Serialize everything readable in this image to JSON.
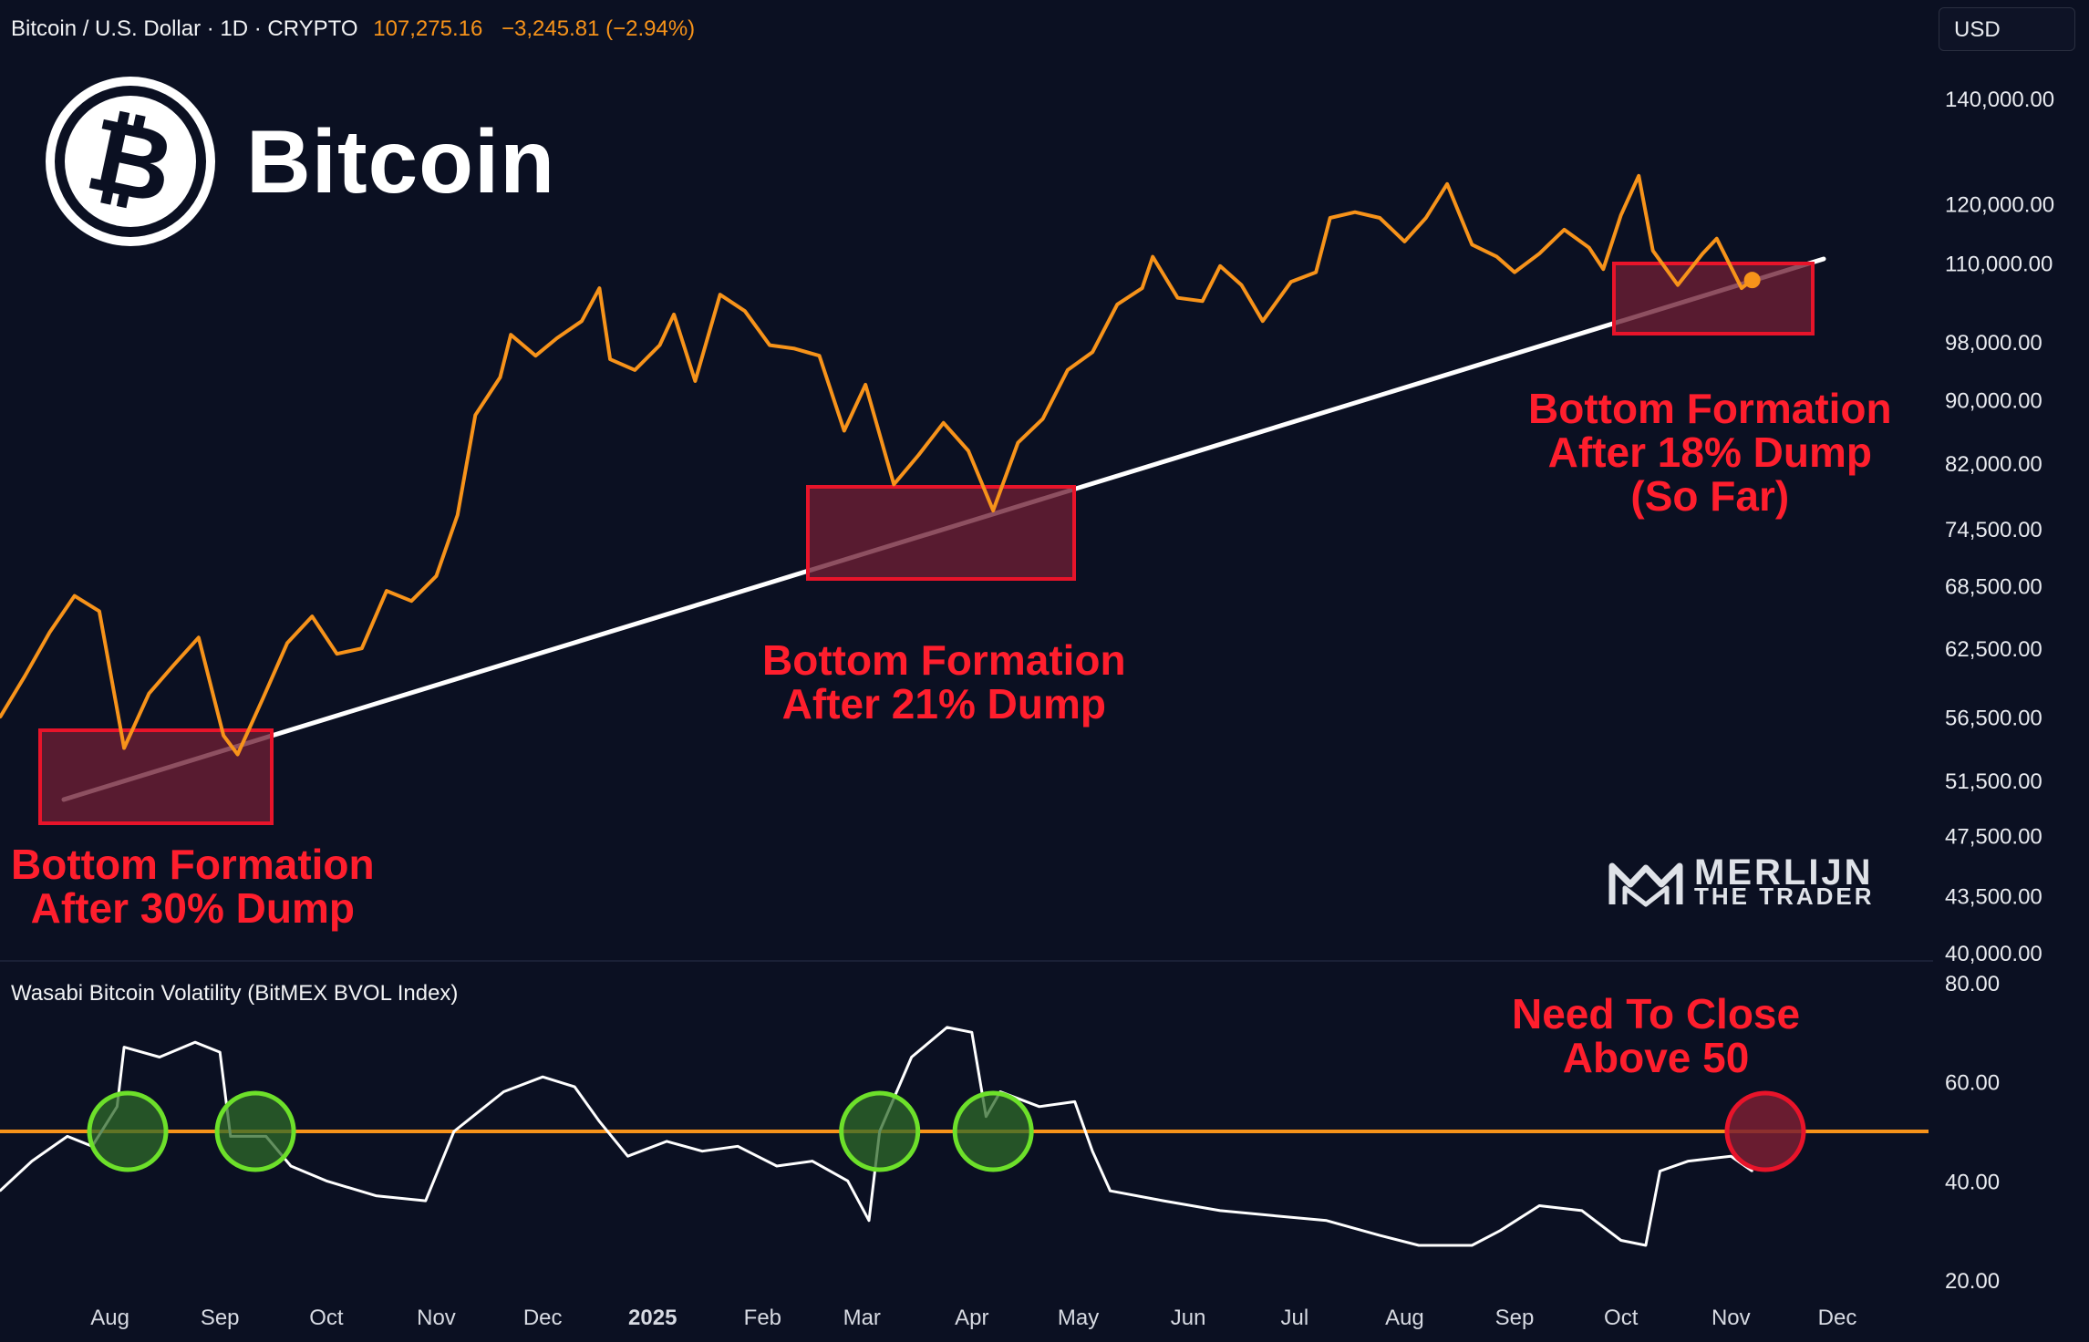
{
  "header": {
    "symbol": "Bitcoin / U.S. Dollar · 1D · CRYPTO",
    "price": "107,275.16",
    "change": "−3,245.81 (−2.94%)",
    "currency_button": "USD"
  },
  "logo": {
    "text": "Bitcoin",
    "icon": "bitcoin-coin-icon"
  },
  "watermark": {
    "line1": "MERLIJN",
    "line2": "THE TRADER",
    "icon": "merlijn-mw-logo-icon"
  },
  "volatility_panel": {
    "title": "Wasabi Bitcoin Volatility (BitMEX BVOL Index)"
  },
  "annotations": {
    "bottom1": [
      "Bottom Formation",
      "After 30% Dump"
    ],
    "bottom2": [
      "Bottom Formation",
      "After 21% Dump"
    ],
    "bottom3": [
      "Bottom Formation",
      "After 18% Dump",
      "(So Far)"
    ],
    "need_close": [
      "Need To Close",
      "Above 50"
    ]
  },
  "colors": {
    "background": "#0b1022",
    "price_line": "#f7931a",
    "trendline": "#ffffff",
    "box_stroke": "#e8142a",
    "box_fill": "#6e1f34",
    "annotation_text": "#ff1e2d",
    "green_circle": "#6de02a",
    "red_circle": "#e8142a",
    "threshold_line": "#f7931a",
    "volatility_line": "#ffffff"
  },
  "chart_data": [
    {
      "type": "line",
      "name": "price",
      "scale": "log",
      "ylim": [
        40000,
        140000
      ],
      "y_ticks": [
        "140,000.00",
        "120,000.00",
        "110,000.00",
        "98,000.00",
        "90,000.00",
        "82,000.00",
        "74,500.00",
        "68,500.00",
        "62,500.00",
        "56,500.00",
        "51,500.00",
        "47,500.00",
        "43,500.00",
        "40,000.00"
      ],
      "x_ticks": [
        "Aug",
        "Sep",
        "Oct",
        "Nov",
        "Dec",
        "2025",
        "Feb",
        "Mar",
        "Apr",
        "May",
        "Jun",
        "Jul",
        "Aug",
        "Sep",
        "Oct",
        "Nov",
        "Dec"
      ],
      "series": [
        {
          "values": [
            [
              "2024-07-01",
              56500
            ],
            [
              "2024-07-08",
              60000
            ],
            [
              "2024-07-15",
              64000
            ],
            [
              "2024-07-22",
              67500
            ],
            [
              "2024-07-29",
              66000
            ],
            [
              "2024-08-05",
              54000
            ],
            [
              "2024-08-12",
              58500
            ],
            [
              "2024-08-19",
              61000
            ],
            [
              "2024-08-26",
              63500
            ],
            [
              "2024-09-02",
              55000
            ],
            [
              "2024-09-06",
              53500
            ],
            [
              "2024-09-13",
              58000
            ],
            [
              "2024-09-20",
              63000
            ],
            [
              "2024-09-27",
              65500
            ],
            [
              "2024-10-04",
              62000
            ],
            [
              "2024-10-11",
              62500
            ],
            [
              "2024-10-18",
              68000
            ],
            [
              "2024-10-25",
              67000
            ],
            [
              "2024-11-01",
              69500
            ],
            [
              "2024-11-07",
              76000
            ],
            [
              "2024-11-12",
              88000
            ],
            [
              "2024-11-19",
              93000
            ],
            [
              "2024-11-22",
              99000
            ],
            [
              "2024-11-29",
              96000
            ],
            [
              "2024-12-05",
              98500
            ],
            [
              "2024-12-12",
              101000
            ],
            [
              "2024-12-17",
              106000
            ],
            [
              "2024-12-20",
              95500
            ],
            [
              "2024-12-27",
              94000
            ],
            [
              "2025-01-03",
              97500
            ],
            [
              "2025-01-07",
              102000
            ],
            [
              "2025-01-13",
              92500
            ],
            [
              "2025-01-20",
              105000
            ],
            [
              "2025-01-27",
              102500
            ],
            [
              "2025-02-03",
              97500
            ],
            [
              "2025-02-10",
              97000
            ],
            [
              "2025-02-17",
              96000
            ],
            [
              "2025-02-24",
              86000
            ],
            [
              "2025-03-02",
              92000
            ],
            [
              "2025-03-10",
              79500
            ],
            [
              "2025-03-17",
              83000
            ],
            [
              "2025-03-24",
              87000
            ],
            [
              "2025-03-31",
              83500
            ],
            [
              "2025-04-07",
              76500
            ],
            [
              "2025-04-14",
              84500
            ],
            [
              "2025-04-21",
              87500
            ],
            [
              "2025-04-28",
              94000
            ],
            [
              "2025-05-05",
              96500
            ],
            [
              "2025-05-12",
              103500
            ],
            [
              "2025-05-19",
              106000
            ],
            [
              "2025-05-22",
              111000
            ],
            [
              "2025-05-29",
              104500
            ],
            [
              "2025-06-05",
              104000
            ],
            [
              "2025-06-10",
              109500
            ],
            [
              "2025-06-16",
              106500
            ],
            [
              "2025-06-22",
              101000
            ],
            [
              "2025-06-30",
              107000
            ],
            [
              "2025-07-07",
              108500
            ],
            [
              "2025-07-11",
              117500
            ],
            [
              "2025-07-18",
              118500
            ],
            [
              "2025-07-25",
              117500
            ],
            [
              "2025-08-01",
              113500
            ],
            [
              "2025-08-07",
              117500
            ],
            [
              "2025-08-13",
              123500
            ],
            [
              "2025-08-20",
              113000
            ],
            [
              "2025-08-27",
              111000
            ],
            [
              "2025-09-01",
              108500
            ],
            [
              "2025-09-08",
              111500
            ],
            [
              "2025-09-15",
              115500
            ],
            [
              "2025-09-22",
              112500
            ],
            [
              "2025-09-26",
              109000
            ],
            [
              "2025-10-01",
              118000
            ],
            [
              "2025-10-06",
              125000
            ],
            [
              "2025-10-10",
              112000
            ],
            [
              "2025-10-17",
              106500
            ],
            [
              "2025-10-24",
              111500
            ],
            [
              "2025-10-28",
              114000
            ],
            [
              "2025-11-04",
              106000
            ],
            [
              "2025-11-07",
              107275
            ]
          ]
        }
      ]
    },
    {
      "type": "line",
      "name": "volatility",
      "ylim": [
        20,
        80
      ],
      "y_ticks": [
        "80.00",
        "60.00",
        "40.00",
        "20.00"
      ],
      "threshold": 50,
      "series": [
        {
          "values": [
            [
              "2024-07-01",
              38
            ],
            [
              "2024-07-10",
              44
            ],
            [
              "2024-07-20",
              49
            ],
            [
              "2024-07-27",
              47
            ],
            [
              "2024-08-03",
              55
            ],
            [
              "2024-08-05",
              67
            ],
            [
              "2024-08-15",
              65
            ],
            [
              "2024-08-25",
              68
            ],
            [
              "2024-09-01",
              66
            ],
            [
              "2024-09-04",
              49
            ],
            [
              "2024-09-14",
              49
            ],
            [
              "2024-09-21",
              43
            ],
            [
              "2024-10-01",
              40
            ],
            [
              "2024-10-15",
              37
            ],
            [
              "2024-10-29",
              36
            ],
            [
              "2024-11-06",
              50
            ],
            [
              "2024-11-20",
              58
            ],
            [
              "2024-12-01",
              61
            ],
            [
              "2024-12-10",
              59
            ],
            [
              "2024-12-17",
              52
            ],
            [
              "2024-12-25",
              45
            ],
            [
              "2025-01-05",
              48
            ],
            [
              "2025-01-15",
              46
            ],
            [
              "2025-01-25",
              47
            ],
            [
              "2025-02-05",
              43
            ],
            [
              "2025-02-15",
              44
            ],
            [
              "2025-02-25",
              40
            ],
            [
              "2025-03-03",
              32
            ],
            [
              "2025-03-06",
              50
            ],
            [
              "2025-03-15",
              65
            ],
            [
              "2025-03-25",
              71
            ],
            [
              "2025-04-01",
              70
            ],
            [
              "2025-04-05",
              53
            ],
            [
              "2025-04-09",
              58
            ],
            [
              "2025-04-20",
              55
            ],
            [
              "2025-04-30",
              56
            ],
            [
              "2025-05-05",
              46
            ],
            [
              "2025-05-10",
              38
            ],
            [
              "2025-05-25",
              36
            ],
            [
              "2025-06-10",
              34
            ],
            [
              "2025-06-25",
              33
            ],
            [
              "2025-07-10",
              32
            ],
            [
              "2025-07-25",
              29
            ],
            [
              "2025-08-05",
              27
            ],
            [
              "2025-08-20",
              27
            ],
            [
              "2025-08-28",
              30
            ],
            [
              "2025-09-08",
              35
            ],
            [
              "2025-09-20",
              34
            ],
            [
              "2025-10-01",
              28
            ],
            [
              "2025-10-08",
              27
            ],
            [
              "2025-10-12",
              42
            ],
            [
              "2025-10-20",
              44
            ],
            [
              "2025-11-01",
              45
            ],
            [
              "2025-11-07",
              42
            ]
          ]
        }
      ]
    }
  ]
}
